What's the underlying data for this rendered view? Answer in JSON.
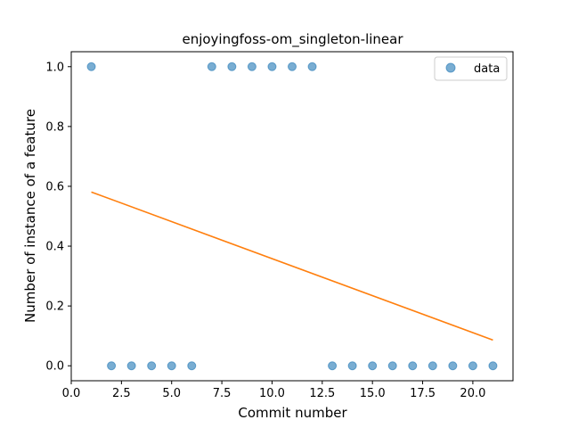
{
  "chart_data": {
    "type": "scatter",
    "title": "enjoyingfoss-om_singleton-linear",
    "xlabel": "Commit number",
    "ylabel": "Number of instance of a feature",
    "xlim": [
      0.0,
      22.0
    ],
    "ylim": [
      -0.05,
      1.05
    ],
    "xticks": [
      0.0,
      2.5,
      5.0,
      7.5,
      10.0,
      12.5,
      15.0,
      17.5,
      20.0
    ],
    "xtick_labels": [
      "0.0",
      "2.5",
      "5.0",
      "7.5",
      "10.0",
      "12.5",
      "15.0",
      "17.5",
      "20.0"
    ],
    "yticks": [
      0.0,
      0.2,
      0.4,
      0.6,
      0.8,
      1.0
    ],
    "ytick_labels": [
      "0.0",
      "0.2",
      "0.4",
      "0.6",
      "0.8",
      "1.0"
    ],
    "grid": false,
    "legend_position": "top-right",
    "series": [
      {
        "name": "data",
        "kind": "scatter",
        "color": "#1f77b4",
        "x": [
          1,
          2,
          3,
          4,
          5,
          6,
          7,
          8,
          9,
          10,
          11,
          12,
          13,
          14,
          15,
          16,
          17,
          18,
          19,
          20,
          21
        ],
        "y": [
          1,
          0,
          0,
          0,
          0,
          0,
          1,
          1,
          1,
          1,
          1,
          1,
          0,
          0,
          0,
          0,
          0,
          0,
          0,
          0,
          0
        ]
      },
      {
        "kind": "line",
        "color": "#ff7f0e",
        "x": [
          1,
          21
        ],
        "y": [
          0.581,
          0.086
        ]
      }
    ]
  }
}
